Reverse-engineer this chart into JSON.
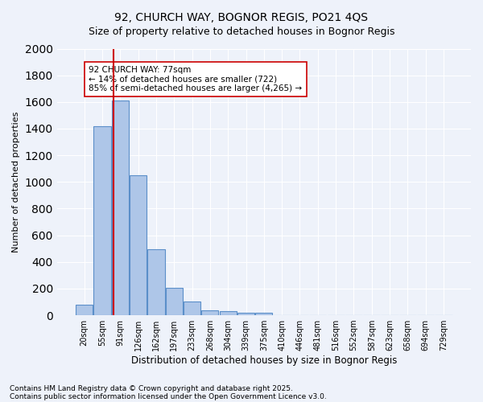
{
  "title1": "92, CHURCH WAY, BOGNOR REGIS, PO21 4QS",
  "title2": "Size of property relative to detached houses in Bognor Regis",
  "xlabel": "Distribution of detached houses by size in Bognor Regis",
  "ylabel": "Number of detached properties",
  "bins": [
    "20sqm",
    "55sqm",
    "91sqm",
    "126sqm",
    "162sqm",
    "197sqm",
    "233sqm",
    "268sqm",
    "304sqm",
    "339sqm",
    "375sqm",
    "410sqm",
    "446sqm",
    "481sqm",
    "516sqm",
    "552sqm",
    "587sqm",
    "623sqm",
    "658sqm",
    "694sqm",
    "729sqm"
  ],
  "values": [
    80,
    1420,
    1610,
    1050,
    495,
    205,
    105,
    38,
    28,
    18,
    18,
    0,
    0,
    0,
    0,
    0,
    0,
    0,
    0,
    0,
    0
  ],
  "bar_color": "#aec6e8",
  "bar_edge_color": "#5b8fc9",
  "vline_pos": 1.65,
  "vline_color": "#cc0000",
  "annotation_text": "92 CHURCH WAY: 77sqm\n← 14% of detached houses are smaller (722)\n85% of semi-detached houses are larger (4,265) →",
  "annotation_box_color": "#ffffff",
  "annotation_box_edge": "#cc0000",
  "footer1": "Contains HM Land Registry data © Crown copyright and database right 2025.",
  "footer2": "Contains public sector information licensed under the Open Government Licence v3.0.",
  "ylim": [
    0,
    2000
  ],
  "yticks": [
    0,
    200,
    400,
    600,
    800,
    1000,
    1200,
    1400,
    1600,
    1800,
    2000
  ],
  "bg_color": "#eef2fa",
  "grid_color": "#ffffff"
}
